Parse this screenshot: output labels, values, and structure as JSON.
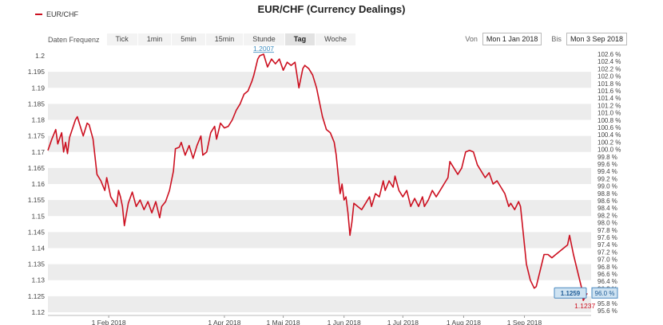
{
  "title": "EUR/CHF (Currency Dealings)",
  "legend": {
    "label": "EUR/CHF",
    "color": "#cc1020"
  },
  "toolbar": {
    "label": "Daten Frequenz",
    "periods": [
      "Tick",
      "1min",
      "5min",
      "15min",
      "Stunde",
      "Tag",
      "Woche"
    ],
    "active": "Tag"
  },
  "range": {
    "from_label": "Von",
    "from_value": "Mon 1 Jan 2018",
    "to_label": "Bis",
    "to_value": "Mon 3 Sep 2018"
  },
  "chart_data": {
    "type": "line",
    "series": [
      {
        "name": "EUR/CHF",
        "color": "#cc1020",
        "points": [
          [
            "2018-01-01",
            1.1705
          ],
          [
            "2018-01-03",
            1.174
          ],
          [
            "2018-01-05",
            1.177
          ],
          [
            "2018-01-06",
            1.1725
          ],
          [
            "2018-01-08",
            1.176
          ],
          [
            "2018-01-09",
            1.17
          ],
          [
            "2018-01-10",
            1.173
          ],
          [
            "2018-01-11",
            1.1695
          ],
          [
            "2018-01-12",
            1.1745
          ],
          [
            "2018-01-15",
            1.18
          ],
          [
            "2018-01-16",
            1.181
          ],
          [
            "2018-01-18",
            1.177
          ],
          [
            "2018-01-19",
            1.175
          ],
          [
            "2018-01-21",
            1.179
          ],
          [
            "2018-01-22",
            1.1785
          ],
          [
            "2018-01-24",
            1.174
          ],
          [
            "2018-01-26",
            1.163
          ],
          [
            "2018-01-28",
            1.161
          ],
          [
            "2018-01-30",
            1.158
          ],
          [
            "2018-01-31",
            1.162
          ],
          [
            "2018-02-02",
            1.156
          ],
          [
            "2018-02-05",
            1.153
          ],
          [
            "2018-02-06",
            1.158
          ],
          [
            "2018-02-07",
            1.156
          ],
          [
            "2018-02-08",
            1.153
          ],
          [
            "2018-02-09",
            1.147
          ],
          [
            "2018-02-11",
            1.154
          ],
          [
            "2018-02-13",
            1.1575
          ],
          [
            "2018-02-15",
            1.153
          ],
          [
            "2018-02-17",
            1.155
          ],
          [
            "2018-02-19",
            1.152
          ],
          [
            "2018-02-21",
            1.1545
          ],
          [
            "2018-02-23",
            1.151
          ],
          [
            "2018-02-25",
            1.1545
          ],
          [
            "2018-02-27",
            1.1495
          ],
          [
            "2018-02-28",
            1.153
          ],
          [
            "2018-03-02",
            1.1545
          ],
          [
            "2018-03-04",
            1.158
          ],
          [
            "2018-03-06",
            1.164
          ],
          [
            "2018-03-07",
            1.171
          ],
          [
            "2018-03-09",
            1.1715
          ],
          [
            "2018-03-10",
            1.173
          ],
          [
            "2018-03-12",
            1.169
          ],
          [
            "2018-03-14",
            1.172
          ],
          [
            "2018-03-16",
            1.168
          ],
          [
            "2018-03-18",
            1.172
          ],
          [
            "2018-03-20",
            1.175
          ],
          [
            "2018-03-21",
            1.169
          ],
          [
            "2018-03-23",
            1.17
          ],
          [
            "2018-03-25",
            1.176
          ],
          [
            "2018-03-27",
            1.178
          ],
          [
            "2018-03-28",
            1.174
          ],
          [
            "2018-03-30",
            1.179
          ],
          [
            "2018-04-01",
            1.1775
          ],
          [
            "2018-04-03",
            1.178
          ],
          [
            "2018-04-05",
            1.18
          ],
          [
            "2018-04-07",
            1.183
          ],
          [
            "2018-04-09",
            1.185
          ],
          [
            "2018-04-11",
            1.188
          ],
          [
            "2018-04-13",
            1.189
          ],
          [
            "2018-04-15",
            1.192
          ],
          [
            "2018-04-16",
            1.194
          ],
          [
            "2018-04-18",
            1.199
          ],
          [
            "2018-04-19",
            1.2
          ],
          [
            "2018-04-21",
            1.2005
          ],
          [
            "2018-04-23",
            1.1965
          ],
          [
            "2018-04-25",
            1.199
          ],
          [
            "2018-04-27",
            1.1975
          ],
          [
            "2018-04-29",
            1.199
          ],
          [
            "2018-05-01",
            1.1955
          ],
          [
            "2018-05-03",
            1.198
          ],
          [
            "2018-05-05",
            1.197
          ],
          [
            "2018-05-07",
            1.198
          ],
          [
            "2018-05-09",
            1.19
          ],
          [
            "2018-05-11",
            1.196
          ],
          [
            "2018-05-12",
            1.197
          ],
          [
            "2018-05-14",
            1.196
          ],
          [
            "2018-05-16",
            1.194
          ],
          [
            "2018-05-18",
            1.19
          ],
          [
            "2018-05-20",
            1.184
          ],
          [
            "2018-05-21",
            1.181
          ],
          [
            "2018-05-23",
            1.177
          ],
          [
            "2018-05-25",
            1.176
          ],
          [
            "2018-05-27",
            1.173
          ],
          [
            "2018-05-28",
            1.169
          ],
          [
            "2018-05-29",
            1.163
          ],
          [
            "2018-05-30",
            1.157
          ],
          [
            "2018-05-31",
            1.16
          ],
          [
            "2018-06-01",
            1.155
          ],
          [
            "2018-06-02",
            1.156
          ],
          [
            "2018-06-03",
            1.151
          ],
          [
            "2018-06-04",
            1.144
          ],
          [
            "2018-06-05",
            1.148
          ],
          [
            "2018-06-06",
            1.154
          ],
          [
            "2018-06-08",
            1.153
          ],
          [
            "2018-06-10",
            1.152
          ],
          [
            "2018-06-12",
            1.154
          ],
          [
            "2018-06-14",
            1.156
          ],
          [
            "2018-06-15",
            1.153
          ],
          [
            "2018-06-17",
            1.157
          ],
          [
            "2018-06-19",
            1.156
          ],
          [
            "2018-06-21",
            1.161
          ],
          [
            "2018-06-22",
            1.158
          ],
          [
            "2018-06-24",
            1.161
          ],
          [
            "2018-06-26",
            1.159
          ],
          [
            "2018-06-27",
            1.1625
          ],
          [
            "2018-06-29",
            1.158
          ],
          [
            "2018-07-01",
            1.156
          ],
          [
            "2018-07-03",
            1.158
          ],
          [
            "2018-07-05",
            1.153
          ],
          [
            "2018-07-07",
            1.1555
          ],
          [
            "2018-07-09",
            1.153
          ],
          [
            "2018-07-11",
            1.156
          ],
          [
            "2018-07-12",
            1.153
          ],
          [
            "2018-07-14",
            1.155
          ],
          [
            "2018-07-16",
            1.158
          ],
          [
            "2018-07-18",
            1.156
          ],
          [
            "2018-07-20",
            1.158
          ],
          [
            "2018-07-22",
            1.16
          ],
          [
            "2018-07-24",
            1.162
          ],
          [
            "2018-07-25",
            1.167
          ],
          [
            "2018-07-27",
            1.165
          ],
          [
            "2018-07-29",
            1.163
          ],
          [
            "2018-07-31",
            1.165
          ],
          [
            "2018-08-02",
            1.17
          ],
          [
            "2018-08-04",
            1.1705
          ],
          [
            "2018-08-06",
            1.17
          ],
          [
            "2018-08-08",
            1.166
          ],
          [
            "2018-08-10",
            1.164
          ],
          [
            "2018-08-12",
            1.162
          ],
          [
            "2018-08-14",
            1.1635
          ],
          [
            "2018-08-16",
            1.16
          ],
          [
            "2018-08-18",
            1.161
          ],
          [
            "2018-08-20",
            1.159
          ],
          [
            "2018-08-22",
            1.157
          ],
          [
            "2018-08-24",
            1.153
          ],
          [
            "2018-08-25",
            1.154
          ],
          [
            "2018-08-27",
            1.152
          ],
          [
            "2018-08-29",
            1.1545
          ],
          [
            "2018-08-30",
            1.153
          ],
          [
            "2018-08-31",
            1.147
          ],
          [
            "2018-09-02",
            1.135
          ],
          [
            "2018-09-04",
            1.13
          ],
          [
            "2018-09-06",
            1.1275
          ],
          [
            "2018-09-07",
            1.128
          ],
          [
            "2018-09-09",
            1.133
          ],
          [
            "2018-09-11",
            1.138
          ],
          [
            "2018-09-13",
            1.138
          ],
          [
            "2018-09-15",
            1.137
          ],
          [
            "2018-09-17",
            1.138
          ],
          [
            "2018-09-19",
            1.139
          ],
          [
            "2018-09-21",
            1.14
          ],
          [
            "2018-09-23",
            1.141
          ],
          [
            "2018-09-24",
            1.144
          ],
          [
            "2018-09-26",
            1.138
          ],
          [
            "2018-09-28",
            1.133
          ],
          [
            "2018-09-30",
            1.128
          ],
          [
            "2018-10-01",
            1.1237
          ],
          [
            "2018-10-03",
            1.1259
          ]
        ]
      }
    ],
    "x_ticks": [
      {
        "date": "2018-02-01",
        "label": "1 Feb 2018"
      },
      {
        "date": "2018-04-01",
        "label": "1 Apr 2018"
      },
      {
        "date": "2018-05-01",
        "label": "1 Mai 2018"
      },
      {
        "date": "2018-06-01",
        "label": "1 Jun 2018"
      },
      {
        "date": "2018-07-01",
        "label": "1 Jul 2018"
      },
      {
        "date": "2018-08-01",
        "label": "1 Aug 2018"
      },
      {
        "date": "2018-09-01",
        "label": "1 Sep 2018"
      }
    ],
    "xlim": [
      "2018-01-01",
      "2018-10-05"
    ],
    "ylim": [
      1.119,
      1.202
    ],
    "y_ticks": [
      1.12,
      1.125,
      1.13,
      1.135,
      1.14,
      1.145,
      1.15,
      1.155,
      1.16,
      1.165,
      1.17,
      1.175,
      1.18,
      1.185,
      1.19,
      1.195,
      1.2
    ],
    "y2_ticks": [
      "102.6 %",
      "102.4 %",
      "102.2 %",
      "102.0 %",
      "101.8 %",
      "101.6 %",
      "101.4 %",
      "101.2 %",
      "101.0 %",
      "100.8 %",
      "100.6 %",
      "100.4 %",
      "100.2 %",
      "100.0 %",
      "99.8 %",
      "99.6 %",
      "99.4 %",
      "99.2 %",
      "99.0 %",
      "98.8 %",
      "98.6 %",
      "98.4 %",
      "98.2 %",
      "98.0 %",
      "97.8 %",
      "97.6 %",
      "97.4 %",
      "97.2 %",
      "97.0 %",
      "96.8 %",
      "96.6 %",
      "96.4 %",
      "96.2 %",
      "96.0 %",
      "95.8 %",
      "95.6 %"
    ],
    "annotations": {
      "max": {
        "date": "2018-04-21",
        "value": 1.2007,
        "label": "1.2007",
        "color": "#3f8ec0"
      },
      "min": {
        "date": "2018-10-01",
        "value": 1.1237,
        "label": "1.1237",
        "color": "#cc1020"
      },
      "last": {
        "value": 1.1259,
        "label": "1.1259",
        "y2_label": "96.0 %"
      }
    },
    "banding": true
  }
}
